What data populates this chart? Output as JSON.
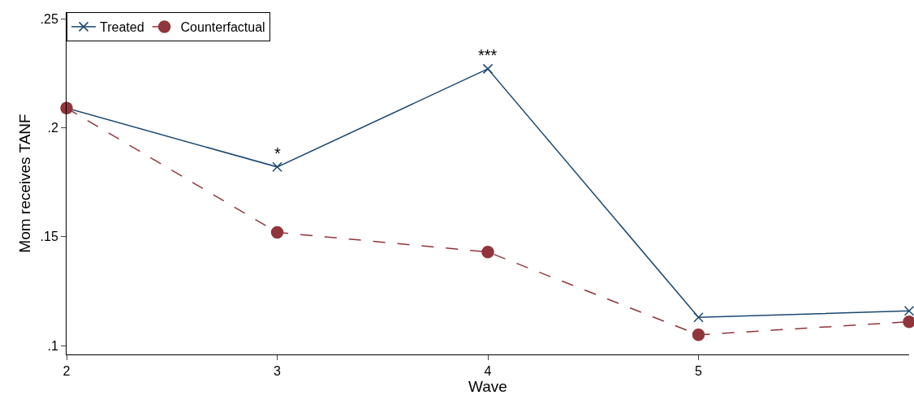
{
  "chart_data": {
    "type": "line",
    "xlabel": "Wave",
    "ylabel": "Mom receives TANF",
    "x": [
      2,
      3,
      4,
      5,
      6
    ],
    "series": [
      {
        "name": "Treated",
        "color": "#1a476f",
        "marker": "cross",
        "line_style": "solid",
        "values": [
          0.209,
          0.182,
          0.227,
          0.113,
          0.116
        ]
      },
      {
        "name": "Counterfactual",
        "color": "#90353b",
        "marker": "circle",
        "line_style": "dashed",
        "values": [
          0.209,
          0.152,
          0.143,
          0.105,
          0.111
        ]
      }
    ],
    "xlim": [
      2,
      6
    ],
    "xticks": [
      2,
      3,
      4,
      5
    ],
    "ylim": [
      0.096,
      0.253
    ],
    "yticks": [
      {
        "value": 0.1,
        "label": ".1"
      },
      {
        "value": 0.15,
        "label": ".15"
      },
      {
        "value": 0.2,
        "label": ".2"
      },
      {
        "value": 0.25,
        "label": ".25"
      }
    ],
    "annotations": [
      {
        "text": "*",
        "x": 3,
        "y": 0.182
      },
      {
        "text": "***",
        "x": 4,
        "y": 0.227
      }
    ],
    "grid": false,
    "legend": "top left"
  }
}
